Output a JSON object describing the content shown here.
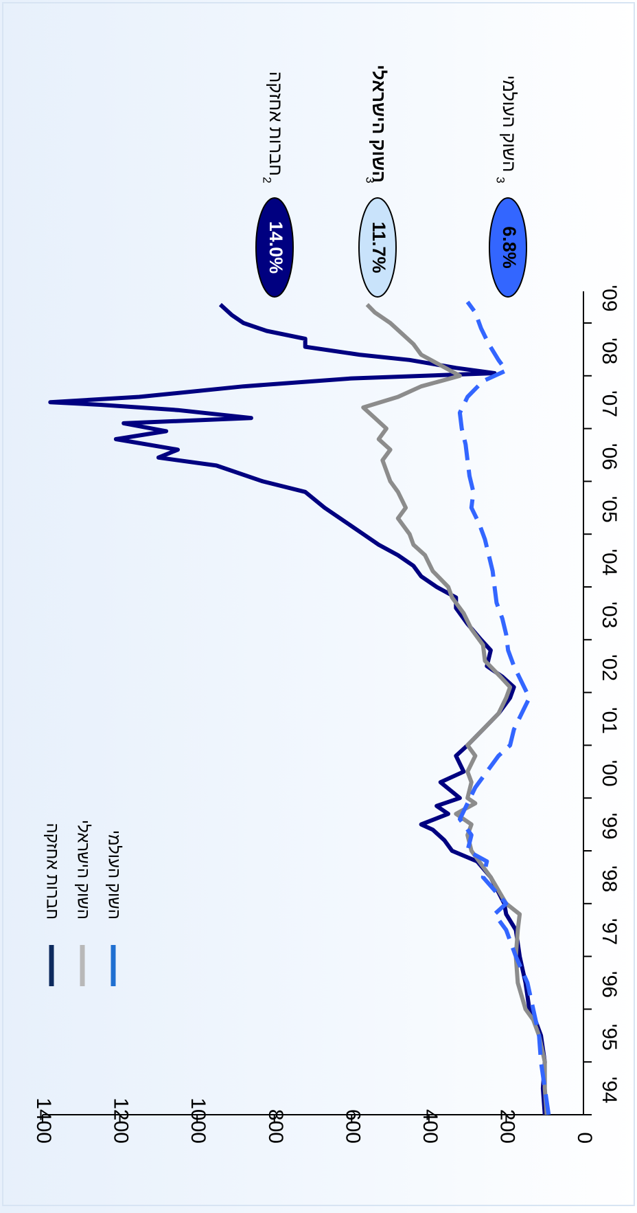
{
  "chart_data": {
    "type": "line",
    "orientation": "rotated-90-clockwise",
    "title": "",
    "xlabel": "",
    "ylabel": "",
    "ylim": [
      0,
      1400
    ],
    "yticks": [
      0,
      200,
      400,
      600,
      800,
      1000,
      1200,
      1400
    ],
    "ytick_labels": [
      "0",
      "200",
      "400",
      "600",
      "800",
      "1000",
      "1200",
      "1400"
    ],
    "xlim": [
      1994,
      2009.6
    ],
    "xticks": [
      1994,
      1995,
      1996,
      1997,
      1998,
      1999,
      2000,
      2001,
      2002,
      2003,
      2004,
      2005,
      2006,
      2007,
      2008,
      2009
    ],
    "xtick_labels": [
      "'94",
      "'95",
      "'96",
      "'97",
      "'98",
      "'99",
      "'00",
      "'01",
      "'02",
      "'03",
      "'04",
      "'05",
      "'06",
      "'07",
      "'08",
      "'09"
    ],
    "grid": false,
    "legend": {
      "placement": "top-left",
      "entries": [
        {
          "label": "חברות אחזקה",
          "color": "#0d2a5e"
        },
        {
          "label": "השוק הישראלי",
          "color": "#b8b8b8"
        },
        {
          "label": "השוק העולמי",
          "color": "#1f6fd1"
        }
      ]
    },
    "series": [
      {
        "name": "חברות אחזקה",
        "color": "#000080",
        "style": "solid",
        "x": [
          1994,
          1994.5,
          1995,
          1995.5,
          1995.8,
          1996,
          1996.5,
          1997,
          1997.5,
          1997.8,
          1998,
          1998.5,
          1998.8,
          1999,
          1999.2,
          1999.4,
          1999.5,
          1999.7,
          1999.85,
          2000,
          2000.3,
          2000.5,
          2000.8,
          2001,
          2001.3,
          2001.6,
          2001.9,
          2002.1,
          2002.3,
          2002.5,
          2002.8,
          2003,
          2003.3,
          2003.6,
          2003.8,
          2004,
          2004.2,
          2004.4,
          2004.6,
          2004.8,
          2005,
          2005.2,
          2005.5,
          2005.8,
          2006,
          2006.3,
          2006.45,
          2006.6,
          2006.8,
          2006.95,
          2007.1,
          2007.2,
          2007.35,
          2007.45,
          2007.5,
          2007.6,
          2007.8,
          2007.95,
          2008.05,
          2008.15,
          2008.3,
          2008.4,
          2008.55,
          2008.7,
          2008.85,
          2009,
          2009.15,
          2009.35
        ],
        "values": [
          100,
          105,
          100,
          110,
          125,
          140,
          150,
          165,
          175,
          200,
          205,
          240,
          275,
          340,
          360,
          390,
          420,
          350,
          380,
          320,
          370,
          310,
          330,
          300,
          260,
          220,
          190,
          180,
          210,
          250,
          240,
          265,
          300,
          330,
          330,
          380,
          420,
          440,
          480,
          530,
          570,
          610,
          670,
          720,
          830,
          950,
          1100,
          1050,
          1210,
          1080,
          1190,
          860,
          1050,
          1250,
          1380,
          1150,
          880,
          600,
          230,
          330,
          450,
          580,
          720,
          720,
          820,
          880,
          910,
          940
        ]
      },
      {
        "name": "השוק הישראלי",
        "color": "#8c8c8c",
        "style": "solid",
        "x": [
          1994,
          1994.5,
          1995,
          1995.5,
          1995.8,
          1996,
          1996.5,
          1997,
          1997.5,
          1997.8,
          1998,
          1998.5,
          1998.8,
          1999,
          1999.3,
          1999.5,
          1999.7,
          1999.9,
          2000,
          2000.3,
          2000.5,
          2000.8,
          2001,
          2001.3,
          2001.6,
          2001.9,
          2002.1,
          2002.3,
          2002.6,
          2002.9,
          2003.2,
          2003.5,
          2003.8,
          2004,
          2004.3,
          2004.6,
          2004.8,
          2005,
          2005.3,
          2005.5,
          2005.8,
          2006,
          2006.2,
          2006.4,
          2006.6,
          2006.8,
          2007,
          2007.2,
          2007.4,
          2007.6,
          2007.8,
          2008,
          2008.2,
          2008.4,
          2008.6,
          2008.8,
          2009,
          2009.2,
          2009.35
        ],
        "values": [
          95,
          100,
          100,
          115,
          130,
          150,
          170,
          175,
          170,
          165,
          200,
          240,
          270,
          290,
          300,
          290,
          330,
          280,
          300,
          290,
          300,
          280,
          300,
          260,
          220,
          200,
          190,
          215,
          255,
          260,
          290,
          310,
          340,
          350,
          390,
          410,
          440,
          450,
          480,
          460,
          480,
          500,
          510,
          520,
          500,
          530,
          510,
          540,
          570,
          480,
          420,
          320,
          370,
          420,
          440,
          470,
          500,
          540,
          560
        ]
      },
      {
        "name": "השוק העולמי",
        "color": "#3366ff",
        "style": "dashed",
        "x": [
          1994,
          1994.5,
          1995,
          1995.5,
          1996,
          1996.5,
          1997,
          1997.5,
          1997.8,
          1998,
          1998.5,
          1998.8,
          1999,
          1999.3,
          1999.6,
          1999.9,
          2000.2,
          2000.5,
          2000.8,
          2001,
          2001.3,
          2001.6,
          2001.9,
          2002.2,
          2002.5,
          2002.8,
          2003.1,
          2003.4,
          2003.7,
          2004,
          2004.3,
          2004.6,
          2004.9,
          2005.2,
          2005.5,
          2005.8,
          2006.1,
          2006.4,
          2006.7,
          2007,
          2007.3,
          2007.6,
          2007.9,
          2008.1,
          2008.3,
          2008.6,
          2008.9,
          2009.2,
          2009.4
        ],
        "values": [
          90,
          100,
          110,
          115,
          130,
          145,
          175,
          200,
          230,
          200,
          260,
          250,
          300,
          290,
          320,
          300,
          280,
          250,
          220,
          190,
          180,
          160,
          140,
          160,
          180,
          195,
          200,
          210,
          225,
          230,
          235,
          245,
          255,
          270,
          290,
          285,
          295,
          300,
          305,
          315,
          320,
          300,
          260,
          200,
          220,
          245,
          265,
          280,
          300
        ]
      }
    ],
    "end_labels": [
      {
        "series": "חברות אחזקה",
        "name": "חברות אחזקה",
        "superscript": "2",
        "value": "14.0%",
        "fill": "#000080",
        "text_color": "#ffffff",
        "bold_name": false
      },
      {
        "series": "השוק הישראלי",
        "name": "השוק הישראלי",
        "superscript": "3",
        "value": "11.7%",
        "fill": "#c9e3fb",
        "text_color": "#000000",
        "bold_name": true
      },
      {
        "series": "השוק העולמי",
        "name": "השוק העולמי",
        "superscript": "3",
        "value": "6.8%",
        "fill": "#3366ff",
        "text_color": "#000000",
        "bold_name": false
      }
    ]
  }
}
